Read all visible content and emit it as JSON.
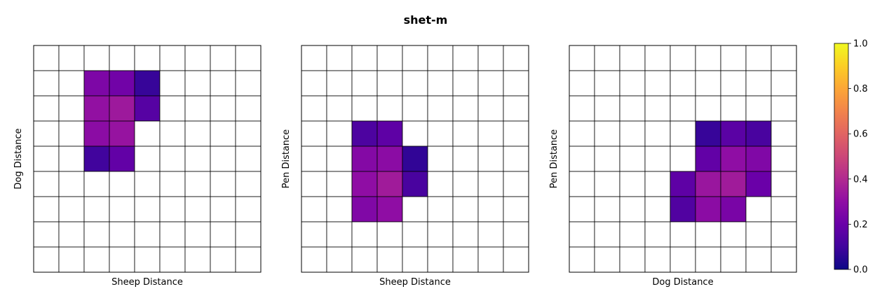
{
  "chart_data": {
    "type": "heatmap",
    "title": "shet-m",
    "colormap": "plasma",
    "color_range": [
      0.0,
      1.0
    ],
    "colorbar_ticks": [
      "0.0",
      "0.2",
      "0.4",
      "0.6",
      "0.8",
      "1.0"
    ],
    "grid_size": [
      9,
      9
    ],
    "panels": [
      {
        "xlabel": "Sheep Distance",
        "ylabel": "Dog Distance",
        "values": [
          [
            null,
            null,
            null,
            null,
            null,
            null,
            null,
            null,
            null
          ],
          [
            null,
            null,
            0.25,
            0.22,
            0.08,
            null,
            null,
            null,
            null
          ],
          [
            null,
            null,
            0.31,
            0.34,
            0.15,
            null,
            null,
            null,
            null
          ],
          [
            null,
            null,
            0.29,
            0.32,
            null,
            null,
            null,
            null,
            null
          ],
          [
            null,
            null,
            0.1,
            0.18,
            null,
            null,
            null,
            null,
            null
          ],
          [
            null,
            null,
            null,
            null,
            null,
            null,
            null,
            null,
            null
          ],
          [
            null,
            null,
            null,
            null,
            null,
            null,
            null,
            null,
            null
          ],
          [
            null,
            null,
            null,
            null,
            null,
            null,
            null,
            null,
            null
          ],
          [
            null,
            null,
            null,
            null,
            null,
            null,
            null,
            null,
            null
          ]
        ]
      },
      {
        "xlabel": "Sheep Distance",
        "ylabel": "Pen Distance",
        "values": [
          [
            null,
            null,
            null,
            null,
            null,
            null,
            null,
            null,
            null
          ],
          [
            null,
            null,
            null,
            null,
            null,
            null,
            null,
            null,
            null
          ],
          [
            null,
            null,
            null,
            null,
            null,
            null,
            null,
            null,
            null
          ],
          [
            null,
            null,
            0.13,
            0.17,
            null,
            null,
            null,
            null,
            null
          ],
          [
            null,
            null,
            0.27,
            0.29,
            0.07,
            null,
            null,
            null,
            null
          ],
          [
            null,
            null,
            0.3,
            0.35,
            0.12,
            null,
            null,
            null,
            null
          ],
          [
            null,
            null,
            0.26,
            0.3,
            null,
            null,
            null,
            null,
            null
          ],
          [
            null,
            null,
            null,
            null,
            null,
            null,
            null,
            null,
            null
          ],
          [
            null,
            null,
            null,
            null,
            null,
            null,
            null,
            null,
            null
          ]
        ]
      },
      {
        "xlabel": "Dog Distance",
        "ylabel": "Pen Distance",
        "values": [
          [
            null,
            null,
            null,
            null,
            null,
            null,
            null,
            null,
            null
          ],
          [
            null,
            null,
            null,
            null,
            null,
            null,
            null,
            null,
            null
          ],
          [
            null,
            null,
            null,
            null,
            null,
            null,
            null,
            null,
            null
          ],
          [
            null,
            null,
            null,
            null,
            null,
            0.08,
            0.16,
            0.12,
            null
          ],
          [
            null,
            null,
            null,
            null,
            null,
            0.18,
            0.3,
            0.26,
            null
          ],
          [
            null,
            null,
            null,
            null,
            0.17,
            0.33,
            0.35,
            0.2,
            null
          ],
          [
            null,
            null,
            null,
            null,
            0.14,
            0.29,
            0.24,
            null,
            null
          ],
          [
            null,
            null,
            null,
            null,
            null,
            null,
            null,
            null,
            null
          ],
          [
            null,
            null,
            null,
            null,
            null,
            null,
            null,
            null,
            null
          ]
        ]
      }
    ]
  }
}
